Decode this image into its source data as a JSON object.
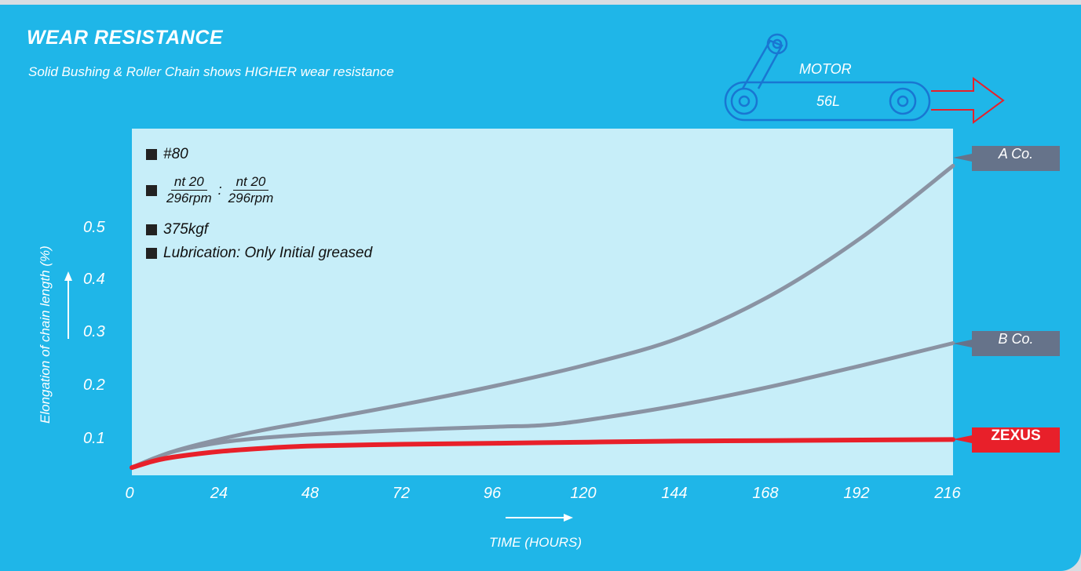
{
  "header": {
    "title": "WEAR RESISTANCE",
    "subtitle": "Solid Bushing & Roller Chain shows HIGHER wear resistance"
  },
  "motor": {
    "label": "MOTOR",
    "size": "56L"
  },
  "conditions": {
    "chain": "#80",
    "speed": {
      "left_numerator": "nt 20",
      "left_denominator": "296rpm",
      "separator": ":",
      "right_numerator": "nt 20",
      "right_denominator": "296rpm"
    },
    "load": "375kgf",
    "lubrication": "Lubrication: Only Initial greased"
  },
  "colors": {
    "background": "#1fb6e8",
    "plot_area": "#c7eef9",
    "competitor": "#8a93a3",
    "competitor_label": "#66738a",
    "zexus": "#e8202a"
  },
  "chart_data": {
    "type": "line",
    "title": "WEAR RESISTANCE",
    "subtitle": "Solid Bushing & Roller Chain shows HIGHER wear resistance",
    "xlabel": "TIME (HOURS)",
    "ylabel": "Elongation of chain length (%)",
    "xlim": [
      0,
      216
    ],
    "ylim": [
      0.04,
      0.62
    ],
    "x_ticks": [
      "0",
      "24",
      "48",
      "72",
      "96",
      "120",
      "144",
      "168",
      "192",
      "216"
    ],
    "y_ticks": [
      "0.1",
      "0.2",
      "0.3",
      "0.4",
      "0.5"
    ],
    "grid": false,
    "series": [
      {
        "name": "A Co.",
        "color": "#8a93a3",
        "x": [
          0,
          6,
          12,
          24,
          36,
          48,
          72,
          96,
          120,
          144,
          168,
          192,
          216
        ],
        "y": [
          0.045,
          0.063,
          0.078,
          0.1,
          0.118,
          0.133,
          0.165,
          0.2,
          0.24,
          0.29,
          0.37,
          0.48,
          0.615
        ]
      },
      {
        "name": "B Co.",
        "color": "#8a93a3",
        "x": [
          0,
          6,
          12,
          24,
          36,
          48,
          72,
          96,
          108,
          120,
          144,
          168,
          192,
          216
        ],
        "y": [
          0.045,
          0.063,
          0.077,
          0.093,
          0.102,
          0.108,
          0.116,
          0.122,
          0.125,
          0.135,
          0.163,
          0.198,
          0.238,
          0.28
        ]
      },
      {
        "name": "ZEXUS",
        "color": "#e8202a",
        "x": [
          0,
          6,
          12,
          24,
          36,
          48,
          72,
          96,
          120,
          144,
          168,
          192,
          216
        ],
        "y": [
          0.045,
          0.058,
          0.066,
          0.076,
          0.082,
          0.086,
          0.089,
          0.091,
          0.093,
          0.095,
          0.096,
          0.097,
          0.098
        ]
      }
    ]
  }
}
